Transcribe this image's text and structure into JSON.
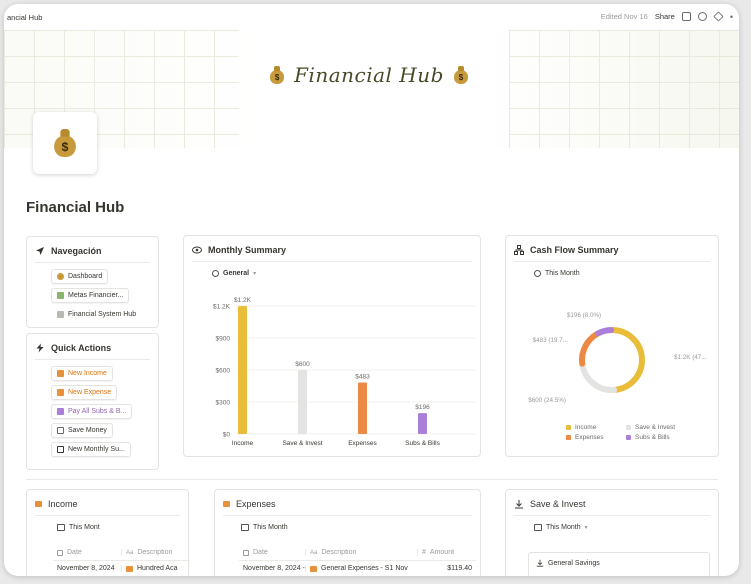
{
  "topbar": {
    "breadcrumb": "ancial Hub",
    "edited": "Edited Nov 16",
    "share": "Share"
  },
  "banner": {
    "title": "Financial Hub"
  },
  "page": {
    "title": "Financial Hub",
    "icon": "money-bag-icon"
  },
  "navigation": {
    "title": "Navegación",
    "items": [
      {
        "label": "Dashboard",
        "icon": "money-bag-icon"
      },
      {
        "label": "Metas Financier...",
        "icon": "chart-icon"
      },
      {
        "label": "Financial System Hub",
        "icon": "lock-icon"
      }
    ]
  },
  "quick_actions": {
    "title": "Quick Actions",
    "items": [
      {
        "label": "New Income",
        "color": "#d9730d"
      },
      {
        "label": "New Expense",
        "color": "#d9730d"
      },
      {
        "label": "Pay All Subs & B...",
        "color": "#9065b0"
      },
      {
        "label": "Save Money",
        "color": "#37352f"
      },
      {
        "label": "New Monthly Su...",
        "color": "#37352f"
      }
    ]
  },
  "monthly_summary": {
    "title": "Monthly Summary",
    "view": "General"
  },
  "cash_flow": {
    "title": "Cash Flow Summary",
    "view": "This Month",
    "labels": [
      "$196 (8.0%)",
      "$483 (19.7...",
      "$1.2K (47...",
      "$600 (24.5%)"
    ],
    "legend": [
      "Income",
      "Save & Invest",
      "Expenses",
      "Subs & Bills"
    ]
  },
  "chart_data": [
    {
      "type": "bar",
      "categories": [
        "Income",
        "Save & Invest",
        "Expenses",
        "Subs & Bills"
      ],
      "values": [
        1200,
        600,
        483,
        196
      ],
      "data_labels": [
        "$1.2K",
        "$600",
        "$483",
        "$196"
      ],
      "yticks": [
        "$0",
        "$300",
        "$600",
        "$900",
        "$1.2K"
      ],
      "ylim": [
        0,
        1200
      ],
      "colors": [
        "#e9bd3a",
        "#e3e3e1",
        "#ec8a45",
        "#ab7fd9"
      ]
    },
    {
      "type": "pie",
      "categories": [
        "Income",
        "Save & Invest",
        "Expenses",
        "Subs & Bills"
      ],
      "values": [
        1200,
        600,
        483,
        196
      ],
      "colors": [
        "#e9bd3a",
        "#e3e3e1",
        "#ec8a45",
        "#ab7fd9"
      ],
      "legend": "bottom"
    }
  ],
  "income": {
    "title": "Income",
    "view": "This Mont",
    "columns": [
      "Date",
      "Description"
    ],
    "rows": [
      {
        "date": "November 8, 2024",
        "description": "Hundred Aca"
      }
    ]
  },
  "expenses": {
    "title": "Expenses",
    "view": "This Month",
    "columns": [
      "Date",
      "Description",
      "Amount"
    ],
    "rows": [
      {
        "date": "November 8, 2024 -",
        "description": "General Expenses - S1 Nov",
        "amount": "$119.40"
      }
    ]
  },
  "save_invest": {
    "title": "Save & Invest",
    "view": "This Month",
    "items": [
      "General Savings"
    ]
  }
}
